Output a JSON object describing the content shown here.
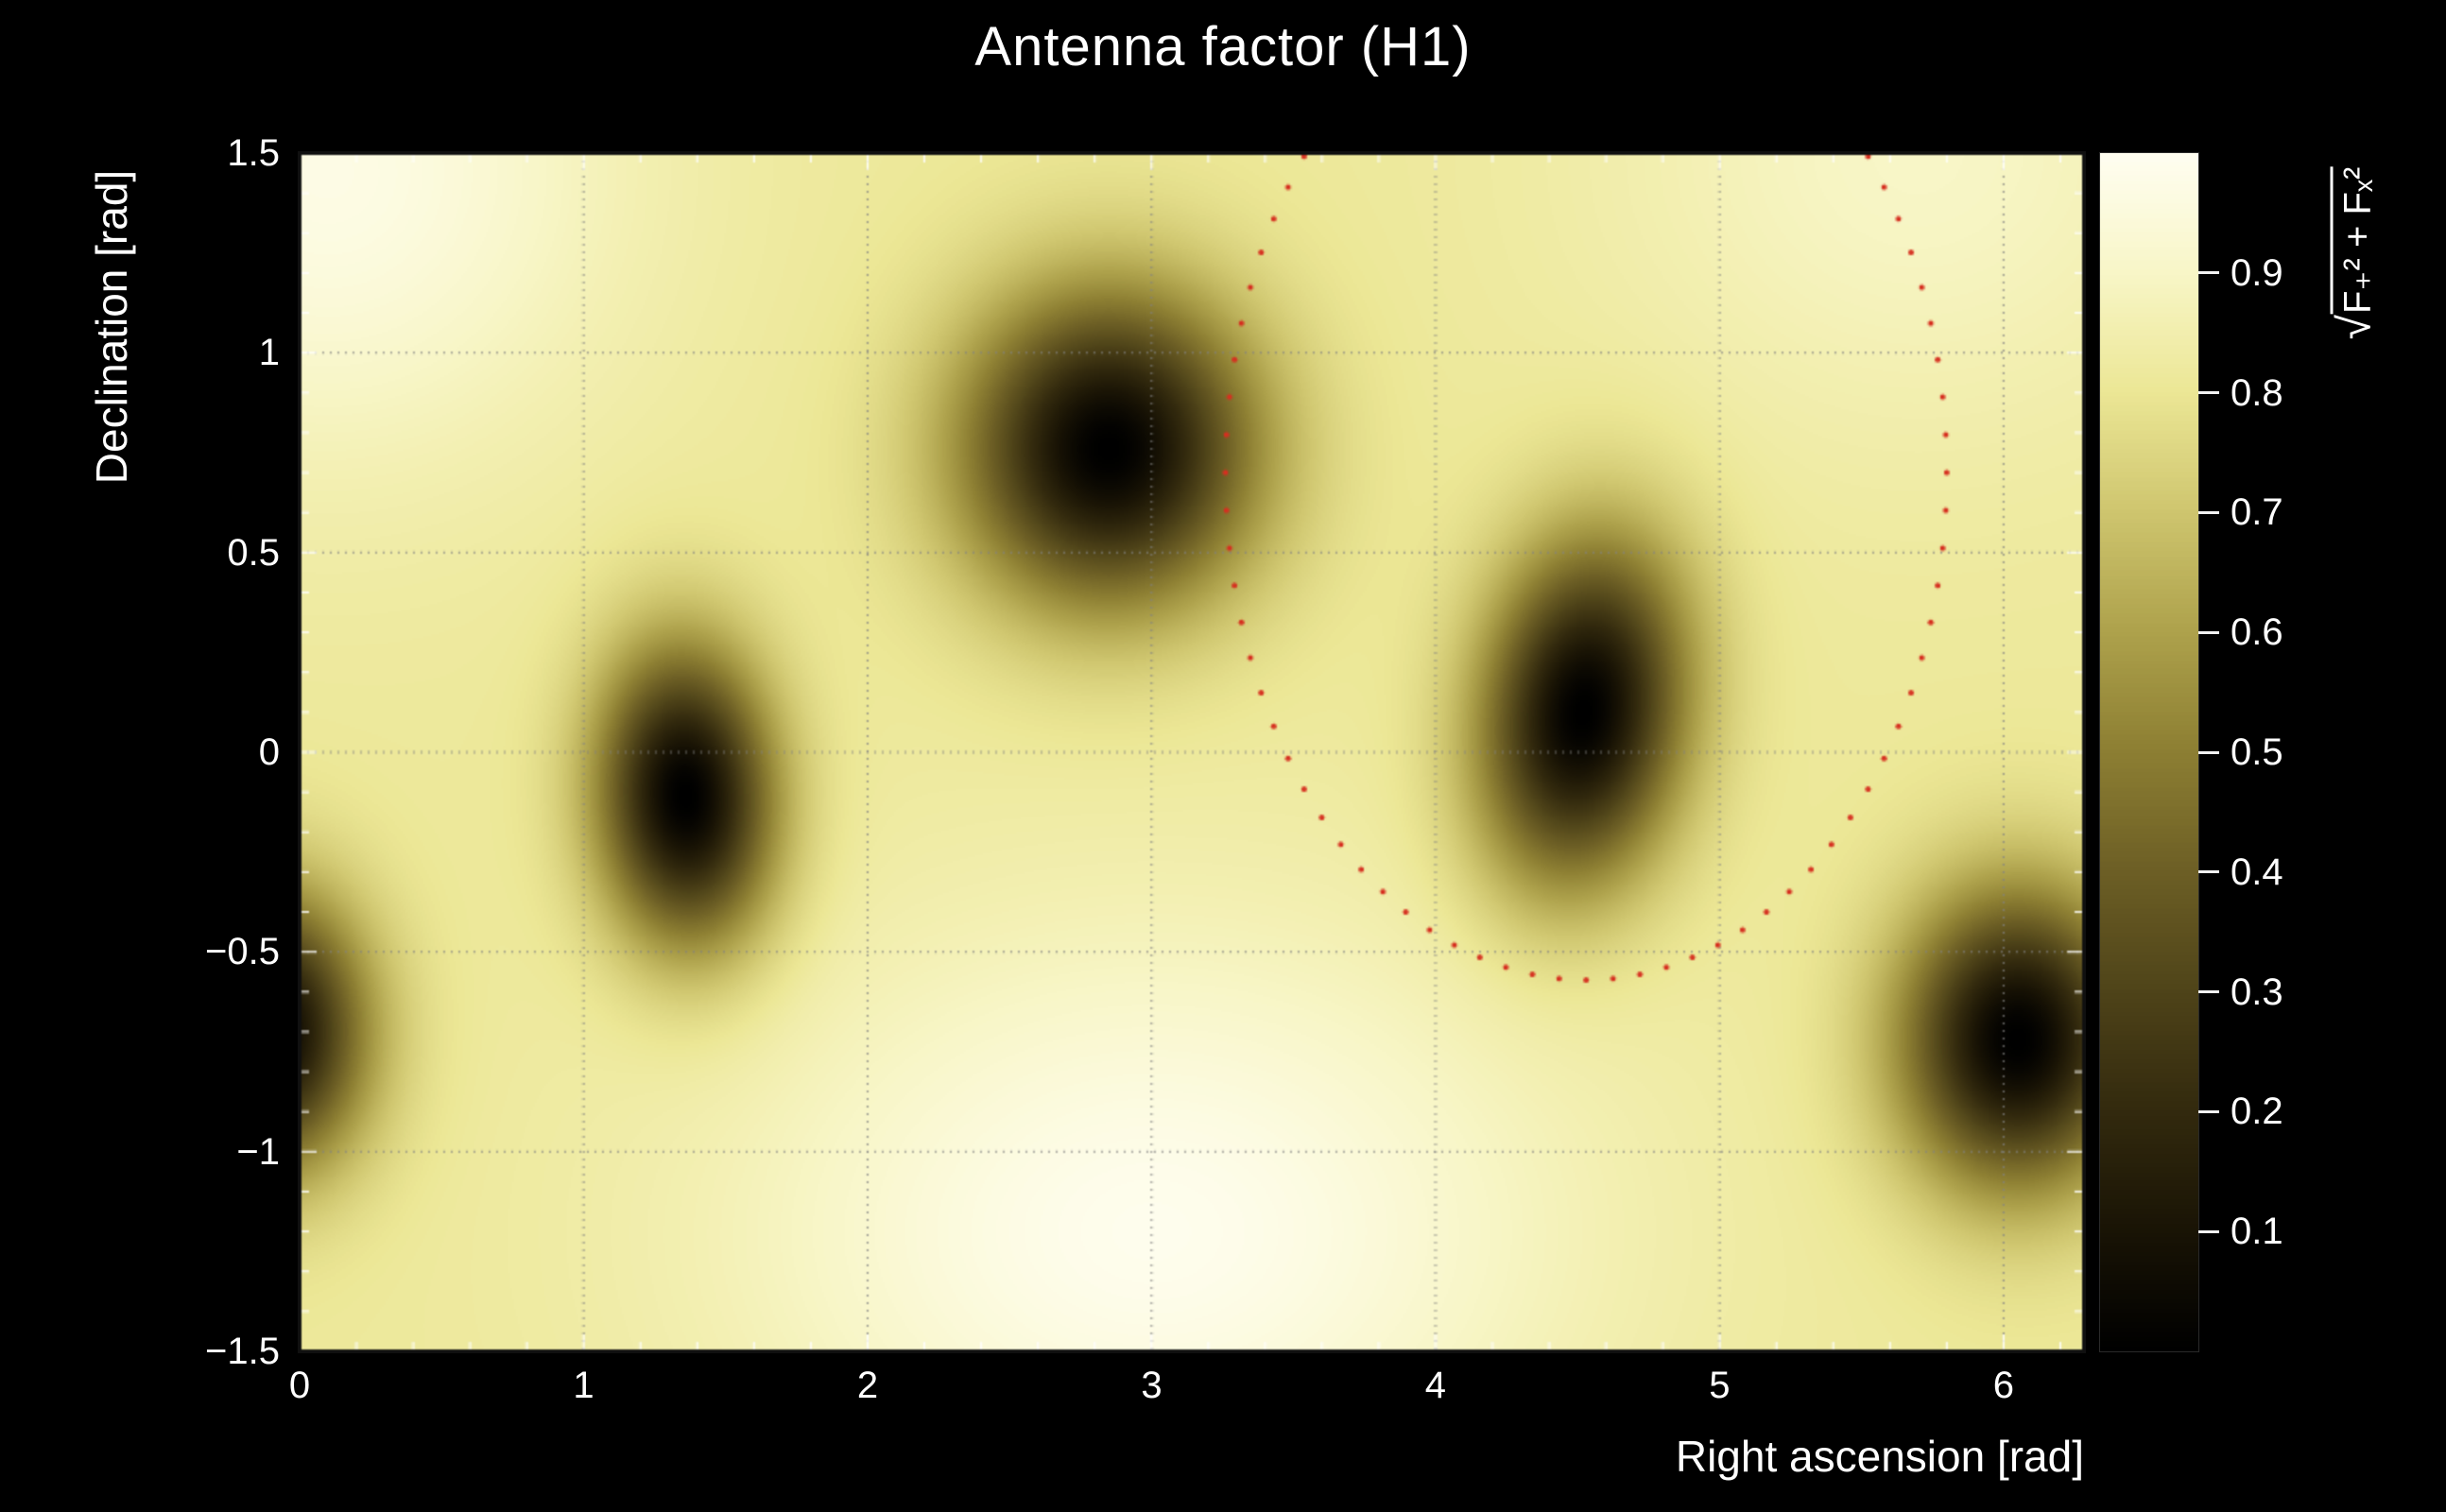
{
  "chart_data": {
    "type": "heatmap",
    "title": "Antenna factor (H1)",
    "xlabel": "Right ascension [rad]",
    "ylabel": "Declination [rad]",
    "xlim": [
      0,
      6.2832
    ],
    "ylim": [
      -1.5,
      1.5
    ],
    "x_ticks": [
      {
        "v": 0,
        "label": "0"
      },
      {
        "v": 1,
        "label": "1"
      },
      {
        "v": 2,
        "label": "2"
      },
      {
        "v": 3,
        "label": "3"
      },
      {
        "v": 4,
        "label": "4"
      },
      {
        "v": 5,
        "label": "5"
      },
      {
        "v": 6,
        "label": "6"
      }
    ],
    "y_ticks": [
      {
        "v": 1.5,
        "label": "1.5"
      },
      {
        "v": 1,
        "label": "1"
      },
      {
        "v": 0.5,
        "label": "0.5"
      },
      {
        "v": 0,
        "label": "0"
      },
      {
        "v": -0.5,
        "label": "−0.5"
      },
      {
        "v": -1,
        "label": "−1"
      },
      {
        "v": -1.5,
        "label": "−1.5"
      }
    ],
    "x_minor_step": 0.2,
    "y_minor_step": 0.1,
    "grid": {
      "color": "rgba(130,130,130,0.85)"
    },
    "frame_color": "#101010",
    "tick_color": "rgba(255,255,255,0.9)",
    "colormap_stops": [
      {
        "t": 0.0,
        "c": "#000000"
      },
      {
        "t": 0.1,
        "c": "#191405"
      },
      {
        "t": 0.2,
        "c": "#332a0e"
      },
      {
        "t": 0.3,
        "c": "#4f4419"
      },
      {
        "t": 0.4,
        "c": "#6d5f25"
      },
      {
        "t": 0.5,
        "c": "#8d7f33"
      },
      {
        "t": 0.6,
        "c": "#aea24c"
      },
      {
        "t": 0.7,
        "c": "#cfc66f"
      },
      {
        "t": 0.8,
        "c": "#ece796"
      },
      {
        "t": 0.9,
        "c": "#f8f6c8"
      },
      {
        "t": 1.0,
        "c": "#fffef2"
      }
    ],
    "background": {
      "base": 0.81,
      "bumps": [
        {
          "x": 0.1,
          "y": 1.45,
          "amp": 0.16,
          "sx2": 1.0,
          "sy2": 0.5
        },
        {
          "x": 3.0,
          "y": -1.2,
          "amp": 0.18,
          "sx2": 2.0,
          "sy2": 0.55
        },
        {
          "x": 5.7,
          "y": 1.5,
          "amp": 0.09,
          "sx2": 1.2,
          "sy2": 0.5
        }
      ]
    },
    "nulls": [
      {
        "x": 2.85,
        "y": 0.76,
        "sx": 0.5,
        "sy": 0.38,
        "rot": 0
      },
      {
        "x": 1.36,
        "y": -0.11,
        "sx": 0.3,
        "sy": 0.36,
        "rot": 0.15
      },
      {
        "x": 4.52,
        "y": 0.1,
        "sx": 0.34,
        "sy": 0.42,
        "rot": -0.35
      },
      {
        "x": 6.05,
        "y": -0.72,
        "sx": 0.4,
        "sy": 0.36,
        "rot": 0
      },
      {
        "x": -0.12,
        "y": -0.7,
        "sx": 0.34,
        "sy": 0.33,
        "rot": 0
      }
    ],
    "overlay_track": {
      "color": "#d63020",
      "cx": 4.53,
      "cy": 0.7,
      "r": 1.27,
      "n_points": 84,
      "clip_y_max": 1.5,
      "dot_radius": 1.5
    },
    "colorbar": {
      "zlim": [
        0,
        1
      ],
      "ticks": [
        {
          "v": 0.9,
          "label": "0.9"
        },
        {
          "v": 0.8,
          "label": "0.8"
        },
        {
          "v": 0.7,
          "label": "0.7"
        },
        {
          "v": 0.6,
          "label": "0.6"
        },
        {
          "v": 0.5,
          "label": "0.5"
        },
        {
          "v": 0.4,
          "label": "0.4"
        },
        {
          "v": 0.3,
          "label": "0.3"
        },
        {
          "v": 0.2,
          "label": "0.2"
        },
        {
          "v": 0.1,
          "label": "0.1"
        }
      ],
      "label_radical": "√",
      "label_expr": "F₊² + Fₓ²"
    }
  }
}
